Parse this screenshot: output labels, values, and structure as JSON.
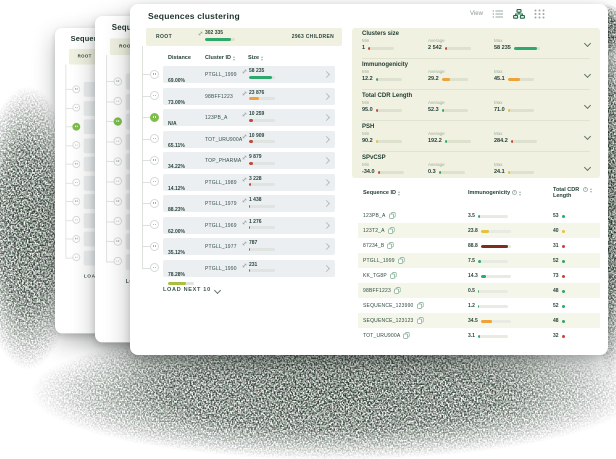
{
  "title": "Sequences clustering",
  "toolbar": {
    "view_label": "View"
  },
  "root_bar": {
    "label": "ROOT",
    "size": "302 335",
    "size_bar": {
      "pct": 85,
      "color": "#2FA86B"
    },
    "children": "2963 CHILDREN"
  },
  "cluster_table": {
    "columns": [
      {
        "label": "Distance"
      },
      {
        "label": "Cluster ID"
      },
      {
        "label": "Size"
      }
    ],
    "rows": [
      {
        "distance": "69.00%",
        "dbar": {
          "pct": 62,
          "color": "#EFA13B"
        },
        "id": "PTGLL_1999",
        "size": "58 235",
        "sbar": {
          "pct": 88,
          "color": "#2FA86B"
        },
        "node_class": ""
      },
      {
        "distance": "73.00%",
        "dbar": {
          "pct": 66,
          "color": "#A6C13D"
        },
        "id": "98BFF1223",
        "size": "23 876",
        "sbar": {
          "pct": 37,
          "color": "#EFA13B"
        },
        "node_class": ""
      },
      {
        "distance": "N/A",
        "dbar": {
          "pct": 0,
          "color": "#2FA86B"
        },
        "id": "123PB_A",
        "size": "10 259",
        "sbar": {
          "pct": 16,
          "color": "#C2483A"
        },
        "node_class": "active"
      },
      {
        "distance": "65.11%",
        "dbar": {
          "pct": 58,
          "color": "#EFA13B"
        },
        "id": "TOT_URU900A",
        "size": "10 909",
        "sbar": {
          "pct": 17,
          "color": "#C2483A"
        },
        "node_class": ""
      },
      {
        "distance": "34.22%",
        "dbar": {
          "pct": 31,
          "color": "#C2483A"
        },
        "id": "TOP_PHARMA",
        "size": "9 879",
        "sbar": {
          "pct": 15,
          "color": "#C2483A"
        },
        "node_class": ""
      },
      {
        "distance": "14.12%",
        "dbar": {
          "pct": 13,
          "color": "#C2483A"
        },
        "id": "PTGLL_1989",
        "size": "3 228",
        "sbar": {
          "pct": 7,
          "color": "#C2483A"
        },
        "node_class": ""
      },
      {
        "distance": "88.23%",
        "dbar": {
          "pct": 79,
          "color": "#2FA86B"
        },
        "id": "PTGLL_1979",
        "size": "1 438",
        "sbar": {
          "pct": 5,
          "color": "#C2483A"
        },
        "node_class": ""
      },
      {
        "distance": "62.00%",
        "dbar": {
          "pct": 56,
          "color": "#EFA13B"
        },
        "id": "PTGLL_1969",
        "size": "1 276",
        "sbar": {
          "pct": 5,
          "color": "#C2483A"
        },
        "node_class": ""
      },
      {
        "distance": "35.12%",
        "dbar": {
          "pct": 32,
          "color": "#C2483A"
        },
        "id": "PTGLL_1977",
        "size": "787",
        "sbar": {
          "pct": 4,
          "color": "#C2483A"
        },
        "node_class": ""
      },
      {
        "distance": "78.28%",
        "dbar": {
          "pct": 70,
          "color": "#A6C13D"
        },
        "id": "PTGLL_1990",
        "size": "231",
        "sbar": {
          "pct": 3,
          "color": "#C2483A"
        },
        "node_class": ""
      }
    ],
    "load_more": "LOAD NEXT 10"
  },
  "stats": [
    {
      "name": "Clusters size",
      "cells": [
        {
          "label": "Min",
          "value": "1",
          "pct": 6,
          "color": "#C2483A"
        },
        {
          "label": "Average",
          "value": "2 542",
          "pct": 8,
          "color": "#C2483A"
        },
        {
          "label": "Max",
          "value": "58 235",
          "pct": 90,
          "color": "#2FA86B"
        }
      ]
    },
    {
      "name": "Immunogenicity",
      "cells": [
        {
          "label": "Min",
          "value": "12.2",
          "pct": 10,
          "color": "#2FA86B"
        },
        {
          "label": "Average",
          "value": "29.2",
          "pct": 32,
          "color": "#EFA13B"
        },
        {
          "label": "Max",
          "value": "45.1",
          "pct": 46,
          "color": "#EFA13B"
        }
      ]
    },
    {
      "name": "Total CDR Length",
      "cells": [
        {
          "label": "Min",
          "value": "95.0",
          "pct": 8,
          "color": "#C2483A"
        },
        {
          "label": "Average",
          "value": "52.3",
          "pct": 8,
          "color": "#2FA86B"
        },
        {
          "label": "Max",
          "value": "71.0",
          "pct": 8,
          "color": "#E4C23F"
        }
      ]
    },
    {
      "name": "PSH",
      "cells": [
        {
          "label": "Min",
          "value": "90.2",
          "pct": 8,
          "color": "#E4C23F"
        },
        {
          "label": "Average",
          "value": "192.2",
          "pct": 8,
          "color": "#2FA86B"
        },
        {
          "label": "Max",
          "value": "284.2",
          "pct": 8,
          "color": "#C2483A"
        }
      ]
    },
    {
      "name": "SPvCSP",
      "cells": [
        {
          "label": "Min",
          "value": "-34.0",
          "pct": 8,
          "color": "#C2483A"
        },
        {
          "label": "Average",
          "value": "0.3",
          "pct": 8,
          "color": "#2FA86B"
        },
        {
          "label": "Max",
          "value": "24.1",
          "pct": 8,
          "color": "#E4C23F"
        }
      ]
    }
  ],
  "sequence_table": {
    "columns": [
      {
        "label": "Sequence ID"
      },
      {
        "label": "Immunogenicity"
      },
      {
        "label": "Total CDR Length"
      }
    ],
    "rows": [
      {
        "id": "123PB_A",
        "imm": "3.5",
        "imm_bar": {
          "pct": 7,
          "color": "#2FA86B"
        },
        "cdr": "53",
        "cdr_color": "#2FA86B"
      },
      {
        "id": "123T2_A",
        "imm": "23.8",
        "imm_bar": {
          "pct": 28,
          "color": "#E4C23F"
        },
        "cdr": "40",
        "cdr_color": "#E4C23F"
      },
      {
        "id": "87234_B",
        "imm": "88.8",
        "imm_bar": {
          "pct": 92,
          "color": "#7E2C1F"
        },
        "cdr": "31",
        "cdr_color": "#C2483A"
      },
      {
        "id": "PTGLL_1999",
        "imm": "7.5",
        "imm_bar": {
          "pct": 10,
          "color": "#2FA86B"
        },
        "cdr": "52",
        "cdr_color": "#2FA86B"
      },
      {
        "id": "KK_TG8P",
        "imm": "14.3",
        "imm_bar": {
          "pct": 16,
          "color": "#2FA86B"
        },
        "cdr": "73",
        "cdr_color": "#C2483A"
      },
      {
        "id": "98BFF1223",
        "imm": "0.5",
        "imm_bar": {
          "pct": 4,
          "color": "#2FA86B"
        },
        "cdr": "48",
        "cdr_color": "#2FA86B"
      },
      {
        "id": "SEQUENCE_123990",
        "imm": "1.2",
        "imm_bar": {
          "pct": 5,
          "color": "#2FA86B"
        },
        "cdr": "52",
        "cdr_color": "#2FA86B"
      },
      {
        "id": "SEQUENCE_123123",
        "imm": "34.5",
        "imm_bar": {
          "pct": 38,
          "color": "#EFA13B"
        },
        "cdr": "48",
        "cdr_color": "#2FA86B"
      },
      {
        "id": "TOT_URU900A",
        "imm": "3.1",
        "imm_bar": {
          "pct": 6,
          "color": "#2FA86B"
        },
        "cdr": "32",
        "cdr_color": "#C2483A"
      }
    ]
  }
}
